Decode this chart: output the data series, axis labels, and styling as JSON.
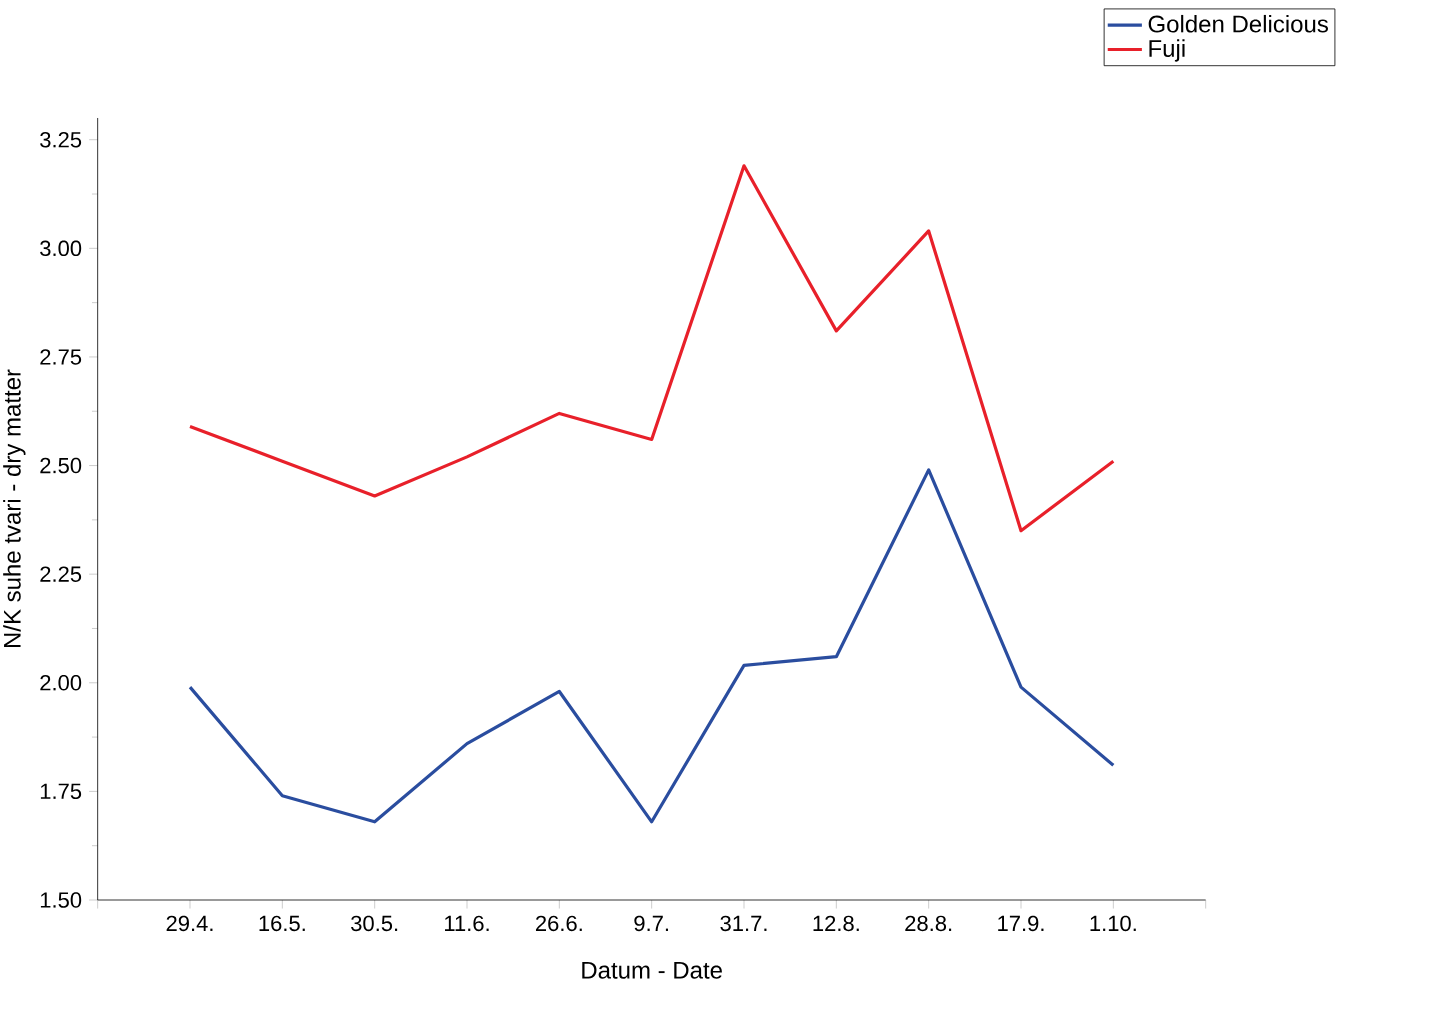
{
  "chart_data": {
    "type": "line",
    "xlabel": "Datum - Date",
    "ylabel": "N/K suhe tvari - dry matter",
    "categories": [
      "29.4.",
      "16.5.",
      "30.5.",
      "11.6.",
      "26.6.",
      "9.7.",
      "31.7.",
      "12.8.",
      "28.8.",
      "17.9.",
      "1.10."
    ],
    "series": [
      {
        "name": "Golden Delicious",
        "color": "#2a4d9f",
        "values": [
          1.99,
          1.74,
          1.68,
          1.86,
          1.98,
          1.68,
          2.04,
          2.06,
          2.49,
          1.99,
          1.81
        ]
      },
      {
        "name": "Fuji",
        "color": "#e8202a",
        "values": [
          2.59,
          2.51,
          2.43,
          2.52,
          2.62,
          2.56,
          3.19,
          2.81,
          3.04,
          2.35,
          2.51
        ]
      }
    ],
    "ylim": [
      1.5,
      3.3
    ],
    "yticks": [
      {
        "value": 1.5,
        "label": "1.50"
      },
      {
        "value": 1.75,
        "label": "1.75"
      },
      {
        "value": 2.0,
        "label": "2.00"
      },
      {
        "value": 2.25,
        "label": "2.25"
      },
      {
        "value": 2.5,
        "label": "2.50"
      },
      {
        "value": 2.75,
        "label": "2.75"
      },
      {
        "value": 3.0,
        "label": "3.00"
      },
      {
        "value": 3.25,
        "label": "3.25"
      }
    ],
    "legend": "top right",
    "grid": false,
    "marker": "none",
    "line_style": "solid"
  }
}
